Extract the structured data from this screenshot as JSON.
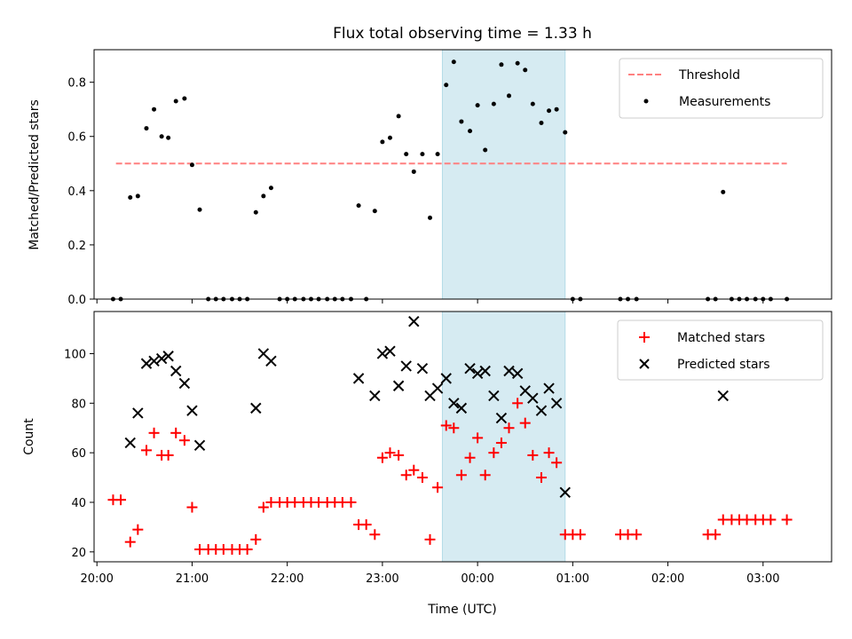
{
  "chart_data": [
    {
      "type": "scatter",
      "title": "Flux total observing time = 1.33 h",
      "xlabel": "",
      "ylabel": "Matched/Predicted stars",
      "xlim_hours": [
        19.97,
        27.72
      ],
      "ylim": [
        0,
        0.92
      ],
      "y_ticks": [
        0.0,
        0.2,
        0.4,
        0.6,
        0.8
      ],
      "y_tick_labels": [
        "0.0",
        "0.2",
        "0.4",
        "0.6",
        "0.8"
      ],
      "highlight_span_hours": [
        23.63,
        24.92
      ],
      "threshold": {
        "name": "Threshold",
        "value": 0.5,
        "x_start_hours": 20.2,
        "x_end_hours": 27.25,
        "color": "#ff8080"
      },
      "series": [
        {
          "name": "Measurements",
          "color": "#000000",
          "points": [
            [
              20.17,
              0.0
            ],
            [
              20.25,
              0.0
            ],
            [
              20.35,
              0.375
            ],
            [
              20.43,
              0.38
            ],
            [
              20.52,
              0.63
            ],
            [
              20.6,
              0.7
            ],
            [
              20.68,
              0.6
            ],
            [
              20.75,
              0.595
            ],
            [
              20.83,
              0.73
            ],
            [
              20.92,
              0.74
            ],
            [
              21.0,
              0.495
            ],
            [
              21.08,
              0.33
            ],
            [
              21.17,
              0.0
            ],
            [
              21.25,
              0.0
            ],
            [
              21.33,
              0.0
            ],
            [
              21.42,
              0.0
            ],
            [
              21.5,
              0.0
            ],
            [
              21.58,
              0.0
            ],
            [
              21.67,
              0.32
            ],
            [
              21.75,
              0.38
            ],
            [
              21.83,
              0.41
            ],
            [
              21.92,
              0.0
            ],
            [
              22.0,
              0.0
            ],
            [
              22.08,
              0.0
            ],
            [
              22.17,
              0.0
            ],
            [
              22.25,
              0.0
            ],
            [
              22.33,
              0.0
            ],
            [
              22.42,
              0.0
            ],
            [
              22.5,
              0.0
            ],
            [
              22.58,
              0.0
            ],
            [
              22.67,
              0.0
            ],
            [
              22.75,
              0.345
            ],
            [
              22.83,
              0.0
            ],
            [
              22.92,
              0.325
            ],
            [
              23.0,
              0.58
            ],
            [
              23.08,
              0.595
            ],
            [
              23.17,
              0.675
            ],
            [
              23.25,
              0.535
            ],
            [
              23.33,
              0.47
            ],
            [
              23.42,
              0.535
            ],
            [
              23.5,
              0.3
            ],
            [
              23.58,
              0.535
            ],
            [
              23.67,
              0.79
            ],
            [
              23.75,
              0.875
            ],
            [
              23.83,
              0.655
            ],
            [
              23.92,
              0.62
            ],
            [
              24.0,
              0.715
            ],
            [
              24.08,
              0.55
            ],
            [
              24.17,
              0.72
            ],
            [
              24.25,
              0.865
            ],
            [
              24.33,
              0.75
            ],
            [
              24.42,
              0.87
            ],
            [
              24.5,
              0.845
            ],
            [
              24.58,
              0.72
            ],
            [
              24.67,
              0.65
            ],
            [
              24.75,
              0.695
            ],
            [
              24.83,
              0.7
            ],
            [
              24.92,
              0.615
            ],
            [
              25.0,
              0.0
            ],
            [
              25.08,
              0.0
            ],
            [
              25.5,
              0.0
            ],
            [
              25.58,
              0.0
            ],
            [
              25.67,
              0.0
            ],
            [
              26.42,
              0.0
            ],
            [
              26.5,
              0.0
            ],
            [
              26.58,
              0.395
            ],
            [
              26.67,
              0.0
            ],
            [
              26.75,
              0.0
            ],
            [
              26.83,
              0.0
            ],
            [
              26.92,
              0.0
            ],
            [
              27.0,
              0.0
            ],
            [
              27.08,
              0.0
            ],
            [
              27.25,
              0.0
            ]
          ]
        }
      ],
      "legend": {
        "position": "upper right"
      }
    },
    {
      "type": "scatter",
      "title": "",
      "xlabel": "Time (UTC)",
      "ylabel": "Count",
      "xlim_hours": [
        19.97,
        27.72
      ],
      "ylim": [
        16,
        117
      ],
      "y_ticks": [
        20,
        40,
        60,
        80,
        100
      ],
      "y_tick_labels": [
        "20",
        "40",
        "60",
        "80",
        "100"
      ],
      "x_ticks_hours": [
        20,
        21,
        22,
        23,
        24,
        25,
        26,
        27
      ],
      "x_tick_labels": [
        "20:00",
        "21:00",
        "22:00",
        "23:00",
        "00:00",
        "01:00",
        "02:00",
        "03:00"
      ],
      "highlight_span_hours": [
        23.63,
        24.92
      ],
      "series": [
        {
          "name": "Matched stars",
          "marker": "plus",
          "color": "#ff0000",
          "points": [
            [
              20.17,
              41
            ],
            [
              20.25,
              41
            ],
            [
              20.35,
              24
            ],
            [
              20.43,
              29
            ],
            [
              20.52,
              61
            ],
            [
              20.6,
              68
            ],
            [
              20.68,
              59
            ],
            [
              20.75,
              59
            ],
            [
              20.83,
              68
            ],
            [
              20.92,
              65
            ],
            [
              21.0,
              38
            ],
            [
              21.08,
              21
            ],
            [
              21.17,
              21
            ],
            [
              21.25,
              21
            ],
            [
              21.33,
              21
            ],
            [
              21.42,
              21
            ],
            [
              21.5,
              21
            ],
            [
              21.58,
              21
            ],
            [
              21.67,
              25
            ],
            [
              21.75,
              38
            ],
            [
              21.83,
              40
            ],
            [
              21.92,
              40
            ],
            [
              22.0,
              40
            ],
            [
              22.08,
              40
            ],
            [
              22.17,
              40
            ],
            [
              22.25,
              40
            ],
            [
              22.33,
              40
            ],
            [
              22.42,
              40
            ],
            [
              22.5,
              40
            ],
            [
              22.58,
              40
            ],
            [
              22.67,
              40
            ],
            [
              22.75,
              31
            ],
            [
              22.83,
              31
            ],
            [
              22.92,
              27
            ],
            [
              23.0,
              58
            ],
            [
              23.08,
              60
            ],
            [
              23.17,
              59
            ],
            [
              23.25,
              51
            ],
            [
              23.33,
              53
            ],
            [
              23.42,
              50
            ],
            [
              23.5,
              25
            ],
            [
              23.58,
              46
            ],
            [
              23.67,
              71
            ],
            [
              23.75,
              70
            ],
            [
              23.83,
              51
            ],
            [
              23.92,
              58
            ],
            [
              24.0,
              66
            ],
            [
              24.08,
              51
            ],
            [
              24.17,
              60
            ],
            [
              24.25,
              64
            ],
            [
              24.33,
              70
            ],
            [
              24.42,
              80
            ],
            [
              24.5,
              72
            ],
            [
              24.58,
              59
            ],
            [
              24.67,
              50
            ],
            [
              24.75,
              60
            ],
            [
              24.83,
              56
            ],
            [
              24.92,
              27
            ],
            [
              25.0,
              27
            ],
            [
              25.08,
              27
            ],
            [
              25.5,
              27
            ],
            [
              25.58,
              27
            ],
            [
              25.67,
              27
            ],
            [
              26.42,
              27
            ],
            [
              26.5,
              27
            ],
            [
              26.58,
              33
            ],
            [
              26.67,
              33
            ],
            [
              26.75,
              33
            ],
            [
              26.83,
              33
            ],
            [
              26.92,
              33
            ],
            [
              27.0,
              33
            ],
            [
              27.08,
              33
            ],
            [
              27.25,
              33
            ]
          ]
        },
        {
          "name": "Predicted stars",
          "marker": "x",
          "color": "#000000",
          "points": [
            [
              20.35,
              64
            ],
            [
              20.43,
              76
            ],
            [
              20.52,
              96
            ],
            [
              20.6,
              97
            ],
            [
              20.68,
              98
            ],
            [
              20.75,
              99
            ],
            [
              20.83,
              93
            ],
            [
              20.92,
              88
            ],
            [
              21.0,
              77
            ],
            [
              21.08,
              63
            ],
            [
              21.67,
              78
            ],
            [
              21.75,
              100
            ],
            [
              21.83,
              97
            ],
            [
              22.75,
              90
            ],
            [
              22.92,
              83
            ],
            [
              23.0,
              100
            ],
            [
              23.08,
              101
            ],
            [
              23.17,
              87
            ],
            [
              23.25,
              95
            ],
            [
              23.33,
              113
            ],
            [
              23.42,
              94
            ],
            [
              23.5,
              83
            ],
            [
              23.58,
              86
            ],
            [
              23.67,
              90
            ],
            [
              23.75,
              80
            ],
            [
              23.83,
              78
            ],
            [
              23.92,
              94
            ],
            [
              24.0,
              92
            ],
            [
              24.08,
              93
            ],
            [
              24.17,
              83
            ],
            [
              24.25,
              74
            ],
            [
              24.33,
              93
            ],
            [
              24.42,
              92
            ],
            [
              24.5,
              85
            ],
            [
              24.58,
              82
            ],
            [
              24.67,
              77
            ],
            [
              24.75,
              86
            ],
            [
              24.83,
              80
            ],
            [
              24.92,
              44
            ],
            [
              26.58,
              83
            ]
          ]
        }
      ],
      "legend": {
        "position": "upper right"
      }
    }
  ]
}
